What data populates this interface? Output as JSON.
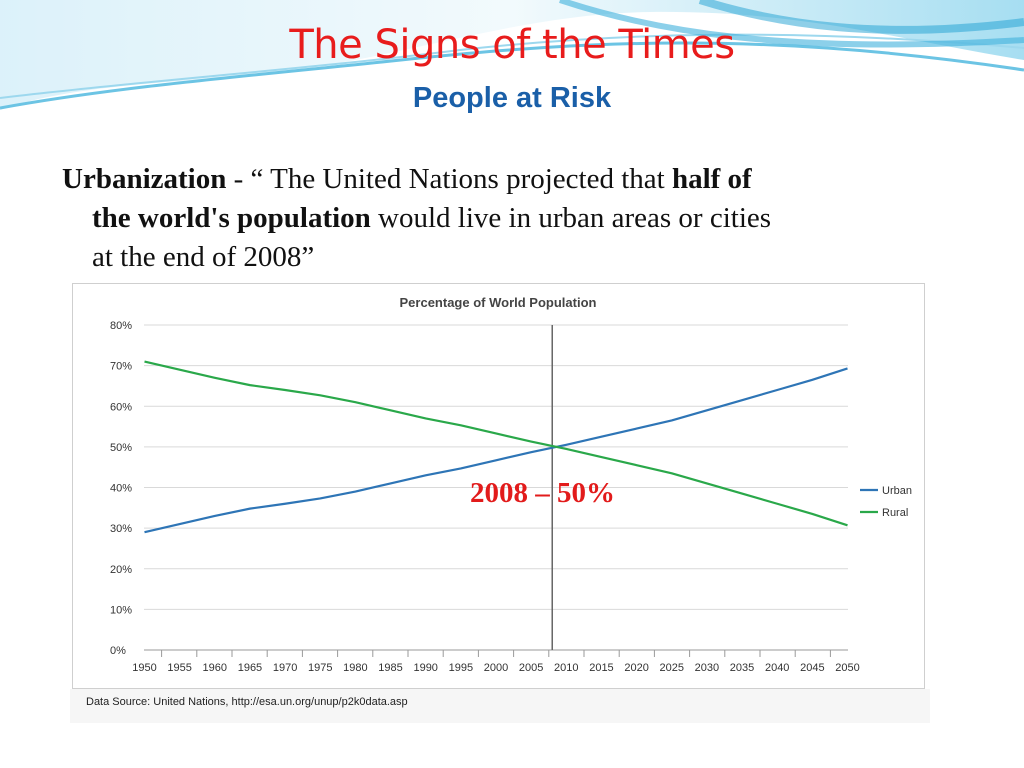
{
  "slide": {
    "title": "The Signs of the Times",
    "subtitle": "People at Risk",
    "body": {
      "term": "Urbanization",
      "part1": " - “ The United Nations  projected that ",
      "bold1": "half of",
      "bold2": "the world's population",
      "part2": " would live in urban areas or cities",
      "part3": "at the end of 2008”"
    },
    "colors": {
      "title": "#e81c1c",
      "subtitle": "#1a5fa8",
      "annotation": "#e21b1b"
    }
  },
  "chart_data": {
    "type": "line",
    "title": "Percentage of World Population",
    "xlabel": "",
    "ylabel": "",
    "x": [
      1950,
      1955,
      1960,
      1965,
      1970,
      1975,
      1980,
      1985,
      1990,
      1995,
      2000,
      2005,
      2010,
      2015,
      2020,
      2025,
      2030,
      2035,
      2040,
      2045,
      2050
    ],
    "yticks": [
      "0%",
      "10%",
      "20%",
      "30%",
      "40%",
      "50%",
      "60%",
      "70%",
      "80%"
    ],
    "ylim": [
      0,
      80
    ],
    "series": [
      {
        "name": "Urban",
        "color": "#2e75b6",
        "values": [
          29.0,
          31.0,
          33.0,
          34.8,
          36.0,
          37.3,
          39.0,
          41.0,
          43.0,
          44.7,
          46.7,
          48.7,
          50.5,
          52.5,
          54.5,
          56.5,
          59.0,
          61.5,
          64.0,
          66.5,
          69.3
        ]
      },
      {
        "name": "Rural",
        "color": "#2aa84a",
        "values": [
          71.0,
          69.0,
          67.0,
          65.2,
          64.0,
          62.7,
          61.0,
          59.0,
          57.0,
          55.3,
          53.3,
          51.3,
          49.5,
          47.5,
          45.5,
          43.5,
          41.0,
          38.5,
          36.0,
          33.5,
          30.7
        ]
      }
    ],
    "marker_year": 2008,
    "legend_position": "right",
    "grid": true,
    "source": "Data Source: United Nations, http://esa.un.org/unup/p2k0data.asp",
    "annotation": "2008 – 50%"
  }
}
